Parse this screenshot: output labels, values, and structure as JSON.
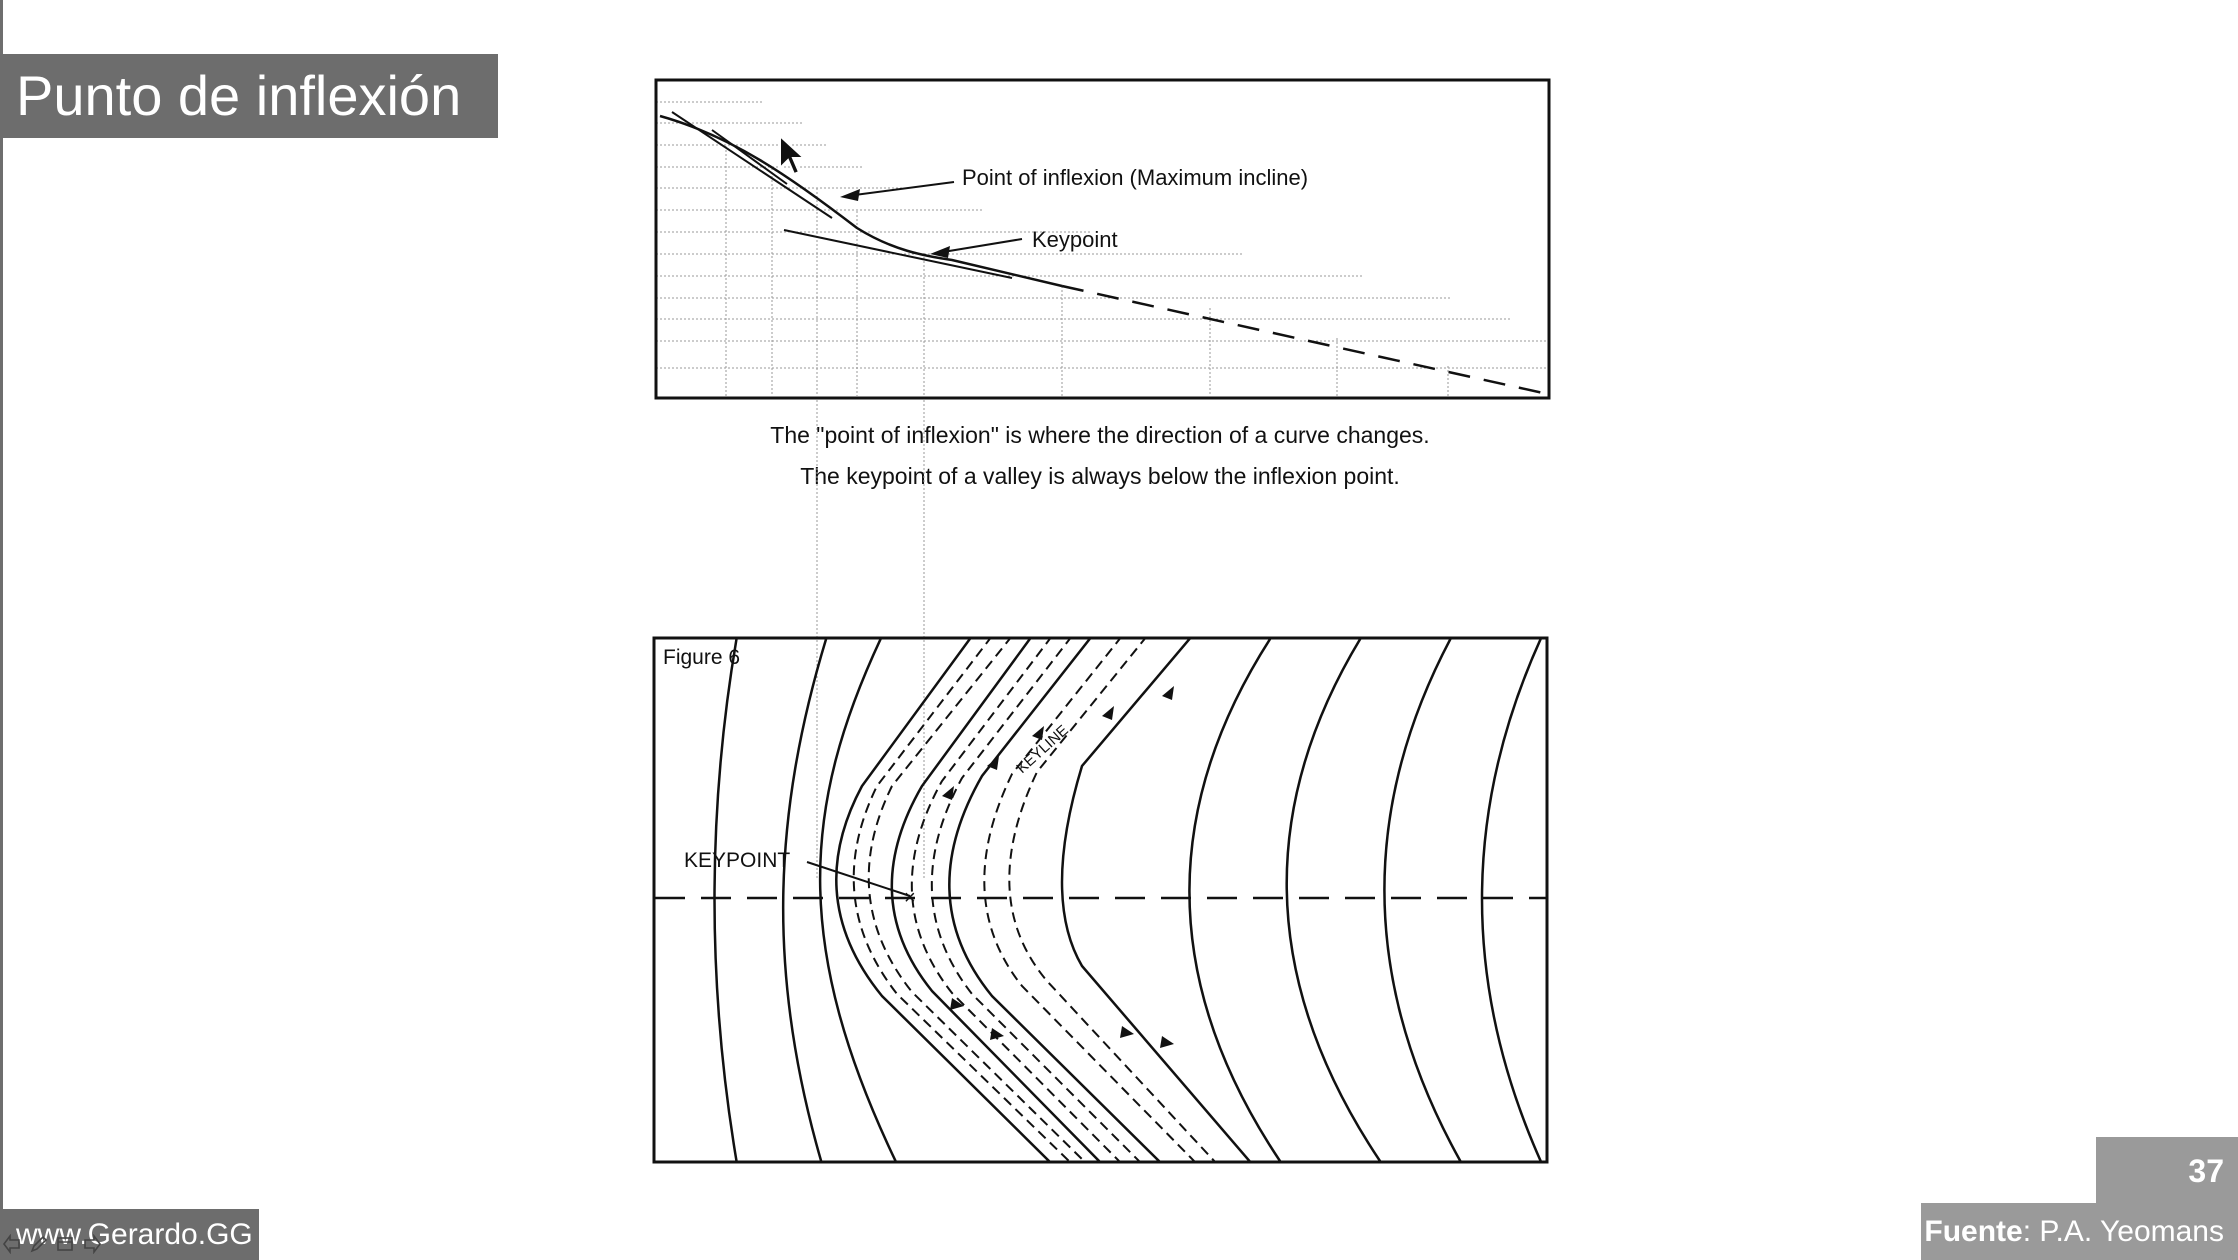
{
  "slide": {
    "title": "Punto de inflexión",
    "page_number": "37",
    "source_label": "Fuente",
    "source_value": ": P.A. Yeomans",
    "website": "www.Gerardo.GG"
  },
  "top_figure": {
    "label_inflexion": "Point of inflexion (Maximum incline)",
    "label_keypoint": "Keypoint",
    "caption_line1": "The \"point of inflexion\" is where the direction of a curve changes.",
    "caption_line2": "The keypoint of a valley is always below the inflexion point."
  },
  "bottom_figure": {
    "figure_label": "Figure 6",
    "keypoint_label": "KEYPOINT",
    "keyline_label": "KEYLINE"
  },
  "controls": {
    "icons": [
      "arrow-left-icon",
      "pen-icon",
      "slides-icon",
      "arrow-right-icon"
    ]
  },
  "colors": {
    "title_bar": "#6d6d6d",
    "badge": "#9a9a9a",
    "line": "#111111"
  }
}
